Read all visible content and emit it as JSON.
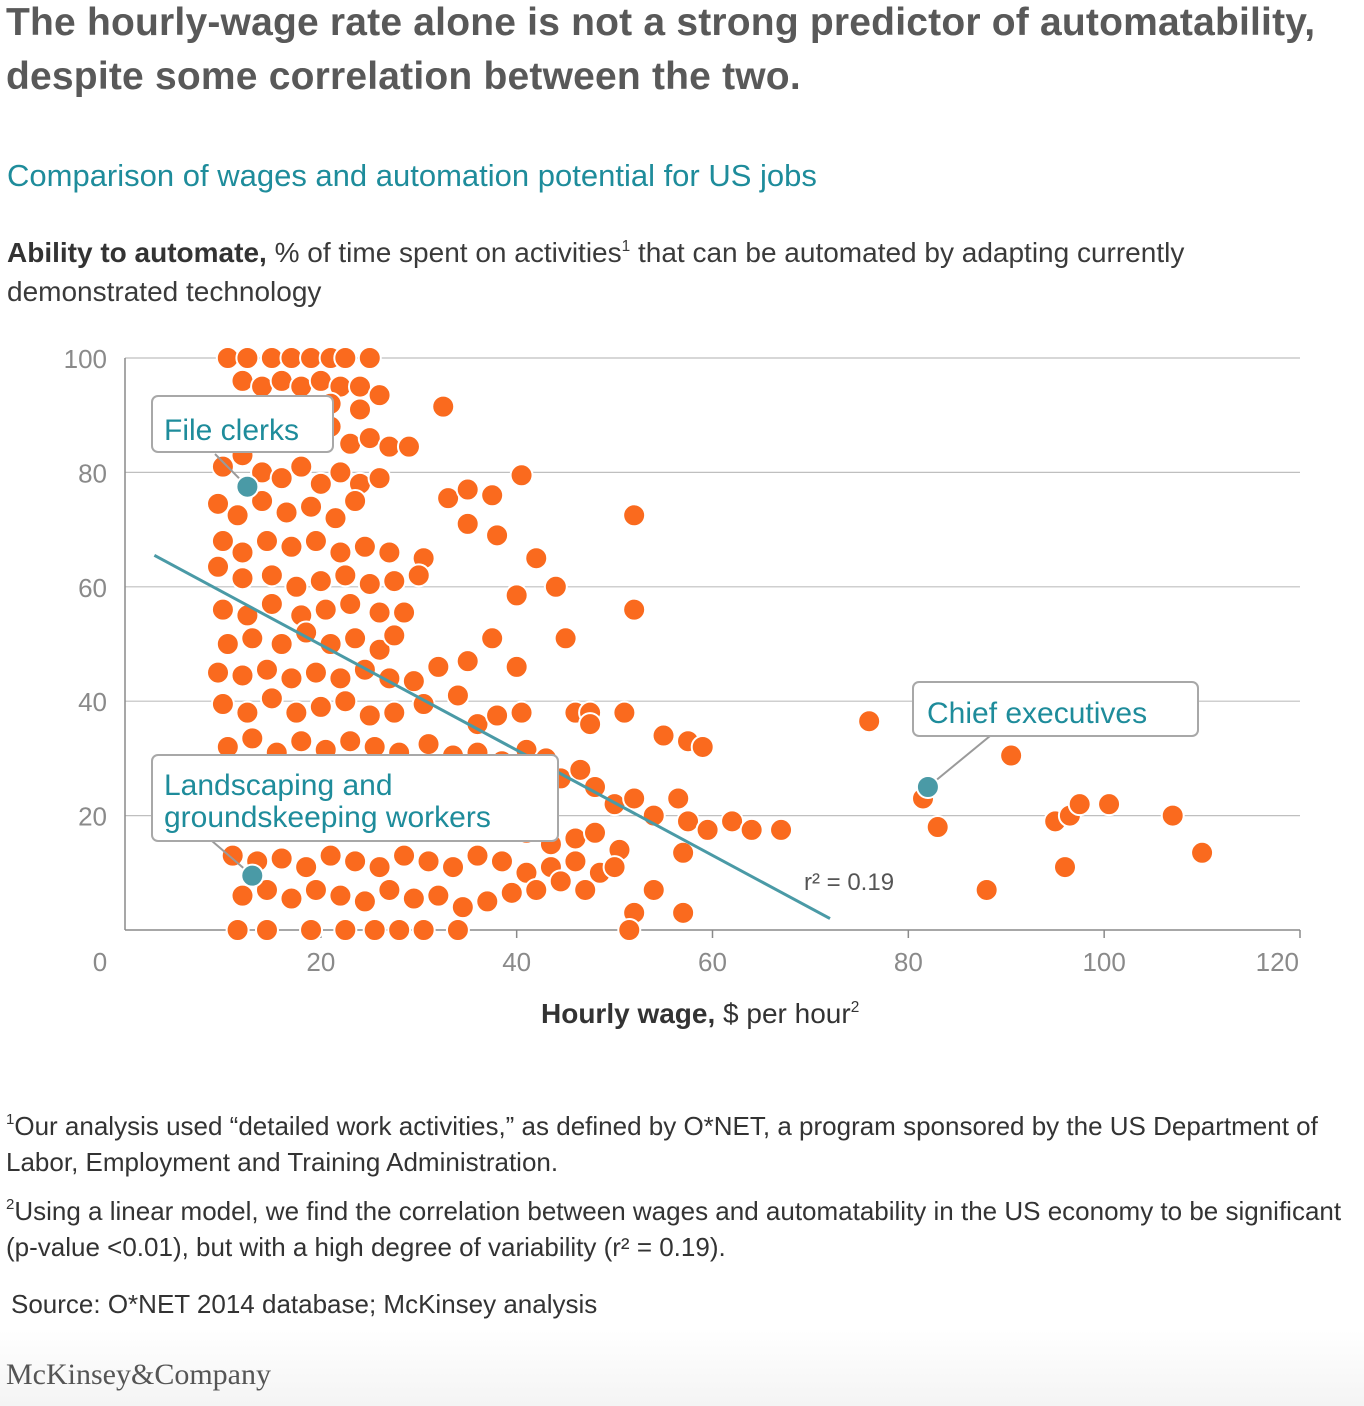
{
  "headline": "The hourly-wage rate alone is not a strong predictor of automatability, despite some correlation between the two.",
  "subtitle": "Comparison of wages and automation potential for US jobs",
  "y_title": {
    "bold": "Ability to automate,",
    "text_a": " % of time spent on activities",
    "sup": "1",
    "text_b": " that can be automated by adapting currently demonstrated technology"
  },
  "x_title": {
    "bold": "Hourly wage,",
    "text": " $ per hour",
    "sup": "2"
  },
  "footnotes": [
    {
      "num": "1",
      "text": "Our analysis used “detailed work activities,” as defined by O*NET, a program sponsored by the US Department of Labor, Employment and Training Administration."
    },
    {
      "num": "2",
      "text": "Using a linear model, we find the correlation between wages and automatability in the US economy to be significant (p-value <0.01), but with a high degree of variability (r² = 0.19)."
    }
  ],
  "source": "Source: O*NET 2014 database; McKinsey analysis",
  "logo": "McKinsey&Company",
  "colors": {
    "points": "#fa6a1e",
    "highlight": "#4a9aa6",
    "trend": "#4a9aa6",
    "callout_text": "#1e8c9b",
    "grid": "#bfbfbf"
  },
  "chart_data": {
    "type": "scatter",
    "xlim": [
      0,
      120
    ],
    "ylim": [
      0,
      100
    ],
    "xticks": [
      0,
      20,
      40,
      60,
      80,
      100,
      120
    ],
    "yticks": [
      20,
      40,
      60,
      80,
      100
    ],
    "grid": true,
    "r2_label": "r² = 0.19",
    "trendline": [
      [
        3,
        65.5
      ],
      [
        72,
        2
      ]
    ],
    "highlights": [
      {
        "label": "File clerks",
        "x": 12.5,
        "y": 77.5
      },
      {
        "label": "Chief executives",
        "x": 82,
        "y": 25
      },
      {
        "label": "Landscaping and groundskeeping workers",
        "x": 13,
        "y": 9.5
      }
    ],
    "points": [
      [
        10.5,
        100
      ],
      [
        12.5,
        100
      ],
      [
        15,
        100
      ],
      [
        17,
        100
      ],
      [
        19,
        100
      ],
      [
        21,
        100
      ],
      [
        22.5,
        100
      ],
      [
        25,
        100
      ],
      [
        12,
        96
      ],
      [
        14,
        95
      ],
      [
        16,
        96
      ],
      [
        18,
        95
      ],
      [
        20,
        96
      ],
      [
        22,
        95
      ],
      [
        24,
        95
      ],
      [
        26,
        93.5
      ],
      [
        21,
        92
      ],
      [
        32.5,
        91.5
      ],
      [
        11,
        89
      ],
      [
        13,
        87
      ],
      [
        15,
        88
      ],
      [
        17,
        86
      ],
      [
        19,
        87
      ],
      [
        21,
        88
      ],
      [
        23,
        85
      ],
      [
        25,
        86
      ],
      [
        27,
        84.5
      ],
      [
        29,
        84.5
      ],
      [
        24,
        91
      ],
      [
        10,
        81
      ],
      [
        12,
        83
      ],
      [
        14,
        80
      ],
      [
        16,
        79
      ],
      [
        18,
        81
      ],
      [
        20,
        78
      ],
      [
        22,
        80
      ],
      [
        24,
        78
      ],
      [
        26,
        79
      ],
      [
        40.5,
        79.5
      ],
      [
        9.5,
        74.5
      ],
      [
        11.5,
        72.5
      ],
      [
        14,
        75
      ],
      [
        16.5,
        73
      ],
      [
        19,
        74
      ],
      [
        21.5,
        72
      ],
      [
        23.5,
        75
      ],
      [
        33,
        75.5
      ],
      [
        35,
        77
      ],
      [
        37.5,
        76
      ],
      [
        52,
        72.5
      ],
      [
        35,
        71
      ],
      [
        38,
        69
      ],
      [
        10,
        68
      ],
      [
        12,
        66
      ],
      [
        14.5,
        68
      ],
      [
        17,
        67
      ],
      [
        19.5,
        68
      ],
      [
        22,
        66
      ],
      [
        24.5,
        67
      ],
      [
        27,
        66
      ],
      [
        30.5,
        65
      ],
      [
        9.5,
        63.5
      ],
      [
        12,
        61.5
      ],
      [
        15,
        62
      ],
      [
        17.5,
        60
      ],
      [
        20,
        61
      ],
      [
        22.5,
        62
      ],
      [
        25,
        60.5
      ],
      [
        27.5,
        61
      ],
      [
        30,
        62
      ],
      [
        42,
        65
      ],
      [
        44,
        60
      ],
      [
        40,
        58.5
      ],
      [
        10,
        56
      ],
      [
        12.5,
        55
      ],
      [
        15,
        57
      ],
      [
        18,
        55
      ],
      [
        20.5,
        56
      ],
      [
        23,
        57
      ],
      [
        26,
        55.5
      ],
      [
        28.5,
        55.5
      ],
      [
        52,
        56
      ],
      [
        10.5,
        50
      ],
      [
        13,
        51
      ],
      [
        16,
        50
      ],
      [
        18.5,
        52
      ],
      [
        21,
        50
      ],
      [
        23.5,
        51
      ],
      [
        26,
        49
      ],
      [
        27.5,
        51.5
      ],
      [
        37.5,
        51
      ],
      [
        45,
        51
      ],
      [
        9.5,
        45
      ],
      [
        12,
        44.5
      ],
      [
        14.5,
        45.5
      ],
      [
        17,
        44
      ],
      [
        19.5,
        45
      ],
      [
        22,
        44
      ],
      [
        24.5,
        45.5
      ],
      [
        27,
        44
      ],
      [
        29.5,
        43.5
      ],
      [
        32,
        46
      ],
      [
        35,
        47
      ],
      [
        40,
        46
      ],
      [
        10,
        39.5
      ],
      [
        12.5,
        38
      ],
      [
        15,
        40.5
      ],
      [
        17.5,
        38
      ],
      [
        20,
        39
      ],
      [
        22.5,
        40
      ],
      [
        25,
        37.5
      ],
      [
        27.5,
        38
      ],
      [
        30.5,
        39.5
      ],
      [
        34,
        41
      ],
      [
        36,
        36
      ],
      [
        38,
        37.5
      ],
      [
        40.5,
        38
      ],
      [
        10.5,
        32
      ],
      [
        13,
        33.5
      ],
      [
        15.5,
        31
      ],
      [
        18,
        33
      ],
      [
        20.5,
        31.5
      ],
      [
        23,
        33
      ],
      [
        25.5,
        32
      ],
      [
        28,
        31
      ],
      [
        31,
        32.5
      ],
      [
        33.5,
        30.5
      ],
      [
        36,
        31
      ],
      [
        38.5,
        29.5
      ],
      [
        41,
        31.5
      ],
      [
        43,
        30
      ],
      [
        46,
        38
      ],
      [
        47.5,
        38
      ],
      [
        51,
        38
      ],
      [
        55,
        34
      ],
      [
        57.5,
        33
      ],
      [
        59,
        32
      ],
      [
        47.5,
        36
      ],
      [
        10,
        26
      ],
      [
        12.5,
        25
      ],
      [
        15,
        27
      ],
      [
        17.5,
        24
      ],
      [
        20,
        26
      ],
      [
        22.5,
        25
      ],
      [
        25,
        27
      ],
      [
        27.5,
        24
      ],
      [
        30,
        26
      ],
      [
        32.5,
        25
      ],
      [
        35,
        27
      ],
      [
        37.5,
        24
      ],
      [
        40,
        26
      ],
      [
        42,
        25
      ],
      [
        44.5,
        26.5
      ],
      [
        46.5,
        28
      ],
      [
        48,
        25
      ],
      [
        50,
        22
      ],
      [
        52,
        23
      ],
      [
        54,
        20
      ],
      [
        56.5,
        23
      ],
      [
        57.5,
        19
      ],
      [
        11,
        19
      ],
      [
        13.5,
        20
      ],
      [
        16,
        18
      ],
      [
        18.5,
        20
      ],
      [
        21,
        19
      ],
      [
        23.5,
        18
      ],
      [
        26,
        20
      ],
      [
        28.5,
        18.5
      ],
      [
        31,
        19
      ],
      [
        33.5,
        18
      ],
      [
        36,
        20
      ],
      [
        38.5,
        18
      ],
      [
        41,
        17
      ],
      [
        43.5,
        15
      ],
      [
        46,
        16
      ],
      [
        48,
        17
      ],
      [
        50.5,
        14
      ],
      [
        59.5,
        17.5
      ],
      [
        62,
        19
      ],
      [
        64,
        17.5
      ],
      [
        67,
        17.5
      ],
      [
        57,
        13.5
      ],
      [
        11,
        13
      ],
      [
        13.5,
        12
      ],
      [
        16,
        12.5
      ],
      [
        18.5,
        11
      ],
      [
        21,
        13
      ],
      [
        23.5,
        12
      ],
      [
        26,
        11
      ],
      [
        28.5,
        13
      ],
      [
        31,
        12
      ],
      [
        33.5,
        11
      ],
      [
        36,
        13
      ],
      [
        38.5,
        12
      ],
      [
        41,
        10
      ],
      [
        43.5,
        11
      ],
      [
        46,
        12
      ],
      [
        48.5,
        10
      ],
      [
        50,
        11
      ],
      [
        12,
        6
      ],
      [
        14.5,
        7
      ],
      [
        17,
        5.5
      ],
      [
        19.5,
        7
      ],
      [
        22,
        6
      ],
      [
        24.5,
        5
      ],
      [
        27,
        7
      ],
      [
        29.5,
        5.5
      ],
      [
        32,
        6
      ],
      [
        34.5,
        4
      ],
      [
        37,
        5
      ],
      [
        39.5,
        6.5
      ],
      [
        42,
        7
      ],
      [
        44.5,
        8.5
      ],
      [
        47,
        7
      ],
      [
        54,
        7
      ],
      [
        52,
        3
      ],
      [
        57,
        3
      ],
      [
        11.5,
        0
      ],
      [
        14.5,
        0
      ],
      [
        19,
        0
      ],
      [
        22.5,
        0
      ],
      [
        25.5,
        0
      ],
      [
        28,
        0
      ],
      [
        30.5,
        0
      ],
      [
        34,
        0
      ],
      [
        51.5,
        0
      ],
      [
        76,
        36.5
      ],
      [
        81.5,
        23
      ],
      [
        83,
        18
      ],
      [
        88,
        7
      ],
      [
        90.5,
        30.5
      ],
      [
        95,
        19
      ],
      [
        96,
        11
      ],
      [
        96.5,
        20
      ],
      [
        97.5,
        22
      ],
      [
        100.5,
        22
      ],
      [
        107,
        20
      ],
      [
        110,
        13.5
      ]
    ]
  }
}
